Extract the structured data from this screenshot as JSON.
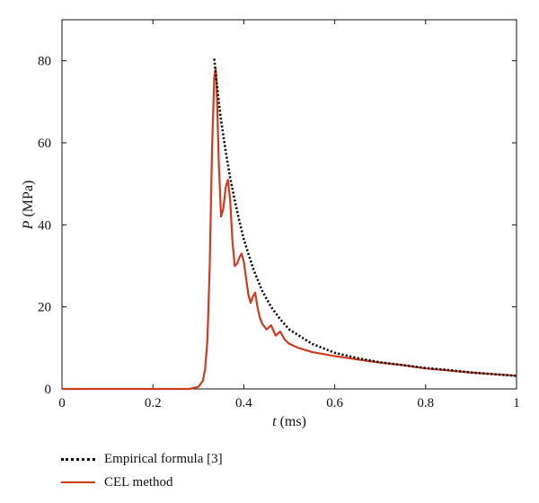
{
  "chart_data": {
    "type": "line",
    "xlabel": {
      "var": "t",
      "unit": " (ms)"
    },
    "ylabel": {
      "var": "P",
      "unit": " (MPa)"
    },
    "xlim": [
      0,
      1
    ],
    "ylim": [
      0,
      90
    ],
    "x_ticks": [
      {
        "value": 0,
        "label": "0"
      },
      {
        "value": 0.2,
        "label": "0.2"
      },
      {
        "value": 0.4,
        "label": "0.4"
      },
      {
        "value": 0.6,
        "label": "0.6"
      },
      {
        "value": 0.8,
        "label": "0.8"
      },
      {
        "value": 1,
        "label": "1"
      }
    ],
    "y_ticks": [
      {
        "value": 0,
        "label": "0"
      },
      {
        "value": 20,
        "label": "20"
      },
      {
        "value": 40,
        "label": "40"
      },
      {
        "value": 60,
        "label": "60"
      },
      {
        "value": 80,
        "label": "80"
      }
    ],
    "grid": false,
    "legend_position": "bottom-left",
    "series": [
      {
        "name": "Empirical formula [3]",
        "color": "#111111",
        "style": "dotted",
        "x": [
          0.335,
          0.34,
          0.345,
          0.35,
          0.36,
          0.37,
          0.38,
          0.39,
          0.4,
          0.42,
          0.44,
          0.46,
          0.48,
          0.5,
          0.55,
          0.6,
          0.65,
          0.7,
          0.75,
          0.8,
          0.85,
          0.9,
          0.95,
          1.0
        ],
        "y": [
          80.5,
          75,
          70,
          65.5,
          58,
          51.5,
          46,
          41,
          36.5,
          29.5,
          24,
          20,
          17,
          14.5,
          11,
          8.8,
          7.5,
          6.5,
          5.8,
          5.1,
          4.6,
          4.0,
          3.6,
          3.2
        ]
      },
      {
        "name": "CEL method",
        "color": "#d03a1e",
        "style": "solid",
        "x": [
          0,
          0.28,
          0.3,
          0.31,
          0.315,
          0.32,
          0.325,
          0.33,
          0.335,
          0.338,
          0.34,
          0.345,
          0.35,
          0.355,
          0.36,
          0.365,
          0.37,
          0.375,
          0.38,
          0.385,
          0.39,
          0.395,
          0.4,
          0.405,
          0.41,
          0.415,
          0.42,
          0.425,
          0.43,
          0.435,
          0.44,
          0.45,
          0.46,
          0.47,
          0.48,
          0.49,
          0.5,
          0.52,
          0.55,
          0.6,
          0.65,
          0.7,
          0.75,
          0.8,
          0.85,
          0.9,
          0.95,
          1.0
        ],
        "y": [
          0,
          0,
          0.5,
          2,
          5,
          12,
          30,
          58,
          76,
          78,
          75,
          55,
          42,
          44,
          49,
          51,
          46,
          36,
          30,
          30.5,
          32,
          33,
          31,
          27,
          23,
          21,
          22.5,
          23.5,
          20,
          17.5,
          16,
          14.5,
          15.5,
          13,
          14,
          12,
          11,
          10,
          9,
          8,
          7.2,
          6.4,
          5.8,
          5.0,
          4.5,
          4.0,
          3.6,
          3.2
        ]
      }
    ]
  },
  "legend": {
    "entries": [
      {
        "label": "Empirical formula [3]"
      },
      {
        "label": "CEL method"
      }
    ]
  }
}
